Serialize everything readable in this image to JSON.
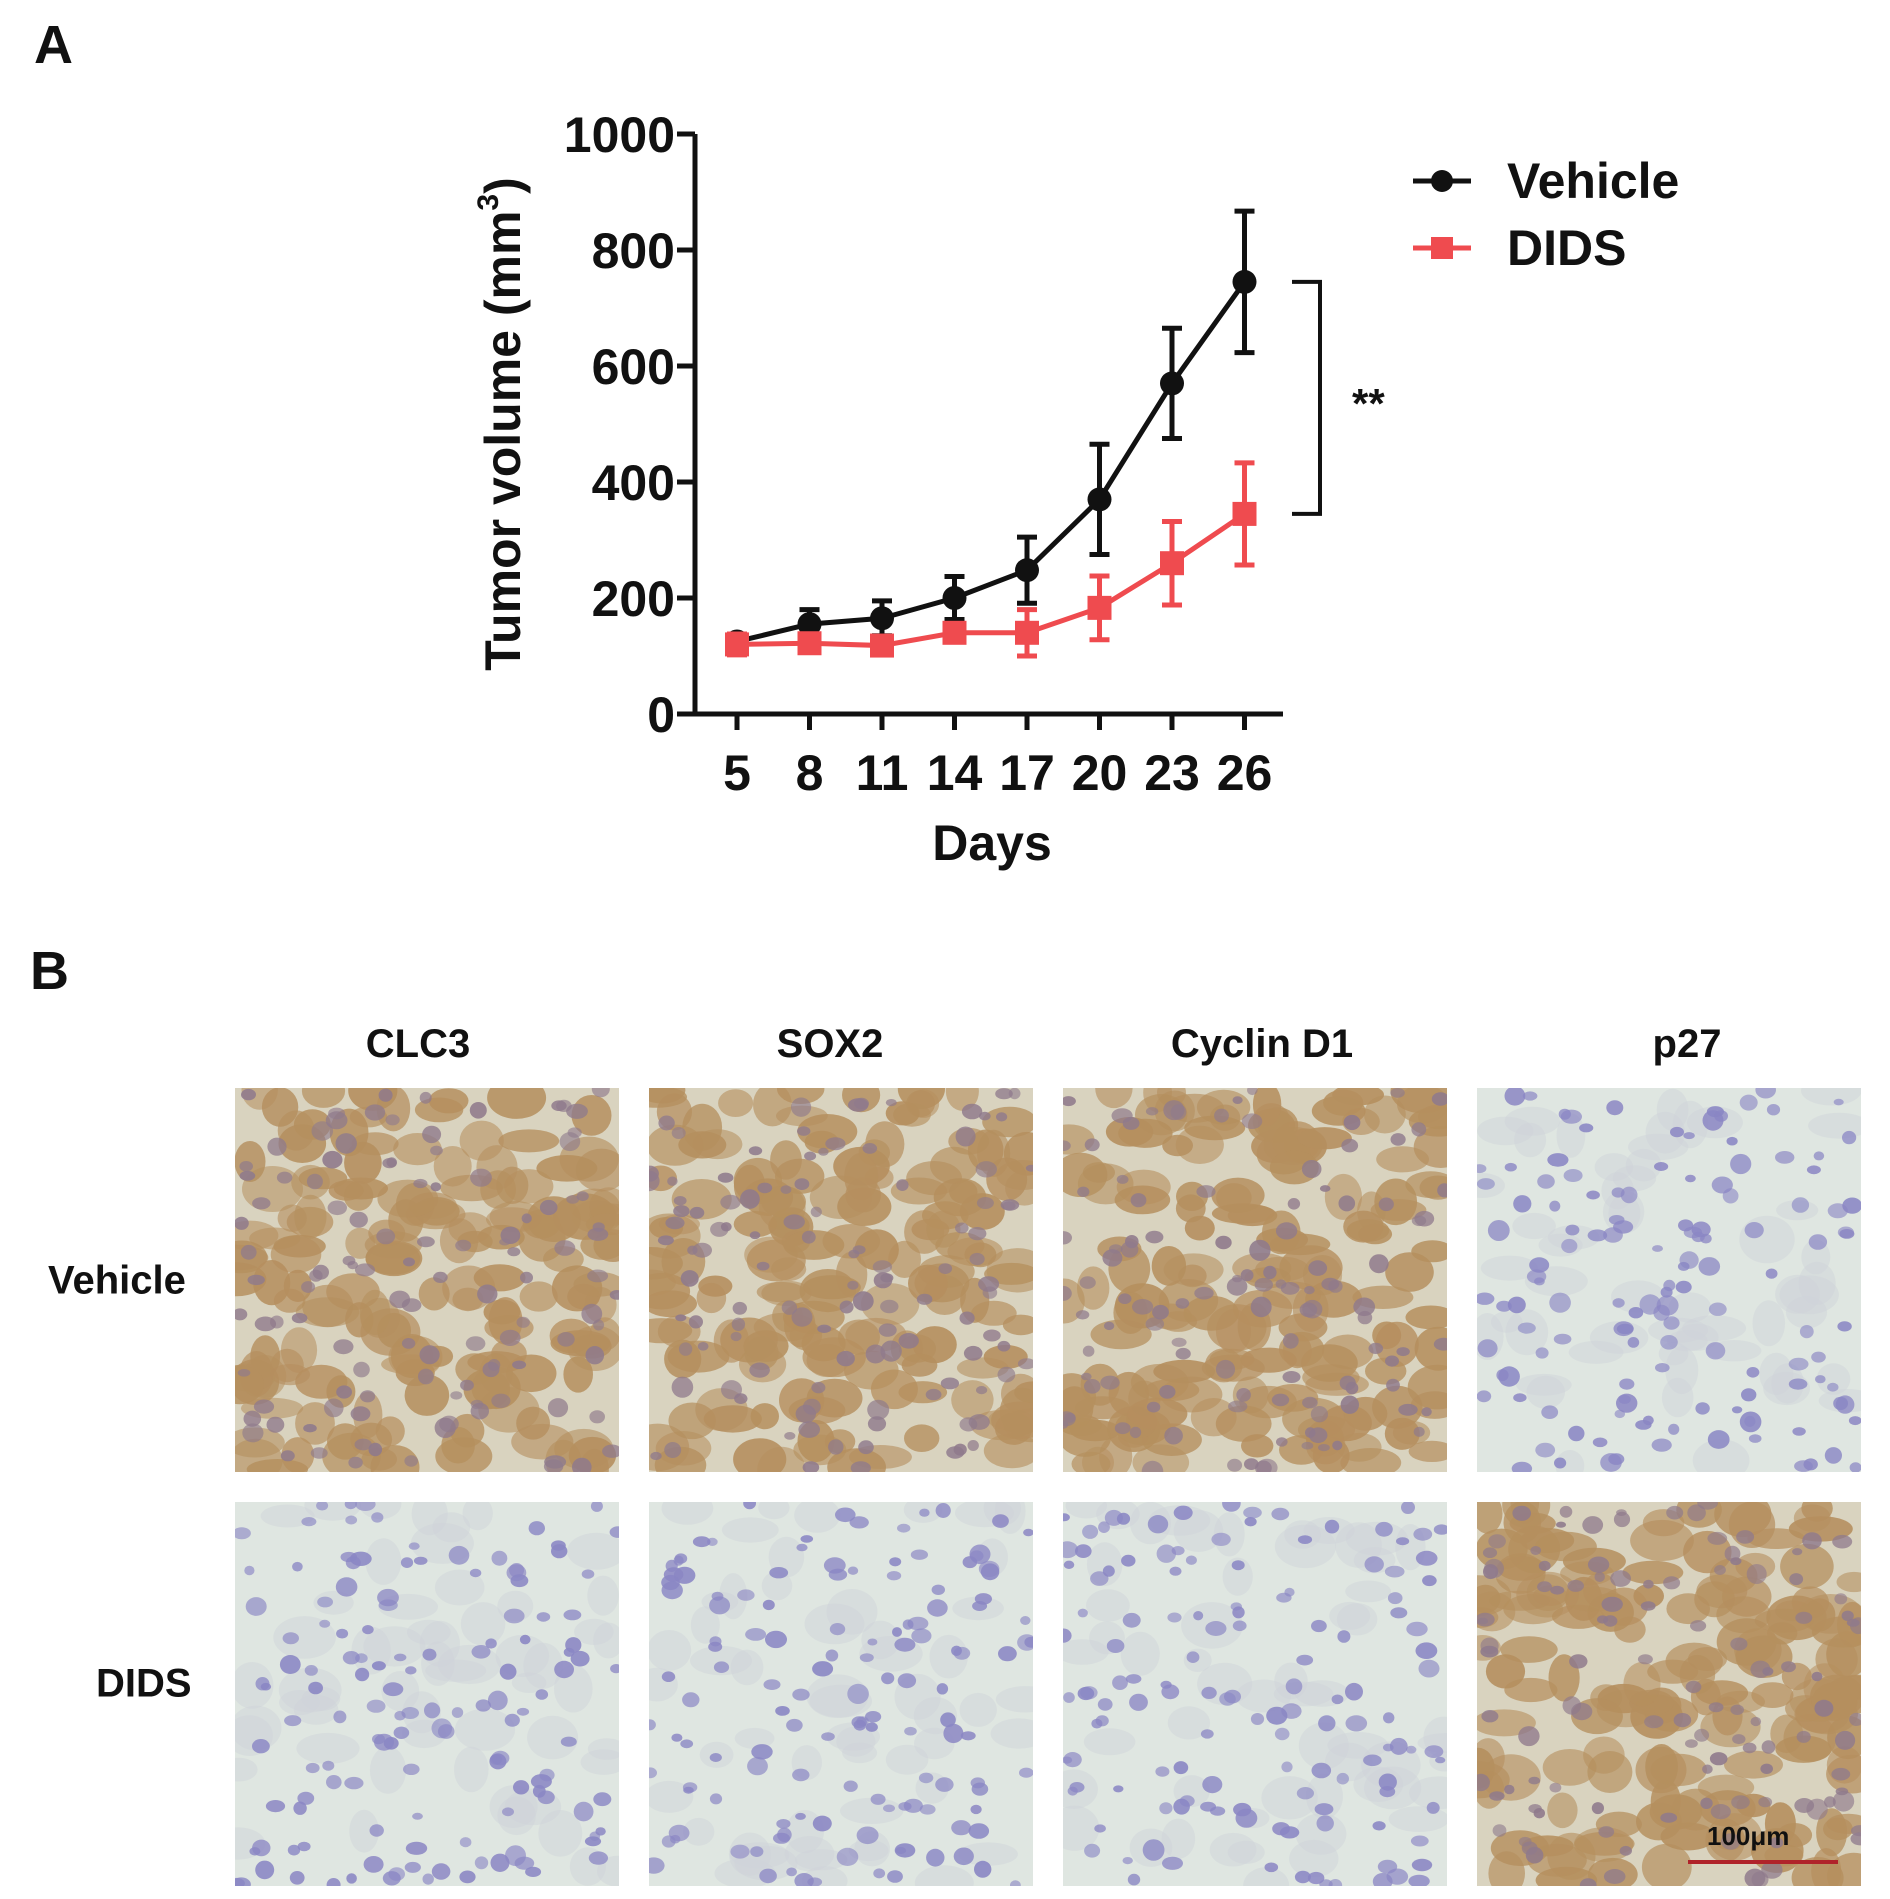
{
  "panel_a": {
    "letter": "A"
  },
  "panel_b": {
    "letter": "B"
  },
  "chart_data": {
    "type": "line",
    "xlabel": "Days",
    "ylabel": "Tumor volume (mm",
    "ylabel_sup": "3",
    "ylabel_close": ")",
    "x": [
      5,
      8,
      11,
      14,
      17,
      20,
      23,
      26
    ],
    "xticks": [
      "5",
      "8",
      "11",
      "14",
      "17",
      "20",
      "23",
      "26"
    ],
    "ylim": [
      0,
      1000
    ],
    "yticks": [
      0,
      200,
      400,
      600,
      800,
      1000
    ],
    "grid": false,
    "legend_position": "top-right",
    "series": [
      {
        "name": "Vehicle",
        "color": "#111111",
        "marker": "circle",
        "values": [
          125,
          155,
          165,
          200,
          248,
          370,
          570,
          745
        ],
        "errors": [
          10,
          25,
          30,
          37,
          57,
          95,
          95,
          122
        ]
      },
      {
        "name": "DIDS",
        "color": "#ef4b4f",
        "marker": "square",
        "values": [
          120,
          122,
          118,
          140,
          140,
          183,
          260,
          345
        ],
        "errors": [
          18,
          12,
          12,
          15,
          40,
          55,
          72,
          88
        ]
      }
    ],
    "annotation": {
      "text": "**",
      "from": 345,
      "to": 745
    }
  },
  "ihc": {
    "columns": [
      "CLC3",
      "SOX2",
      "Cyclin D1",
      "p27"
    ],
    "rows": [
      "Vehicle",
      "DIDS"
    ],
    "scale_bar": "100μm",
    "stain_colors": {
      "background": "#dfe6e1",
      "dab": "#b58f5e",
      "nucleus": "#8a86c4"
    }
  }
}
